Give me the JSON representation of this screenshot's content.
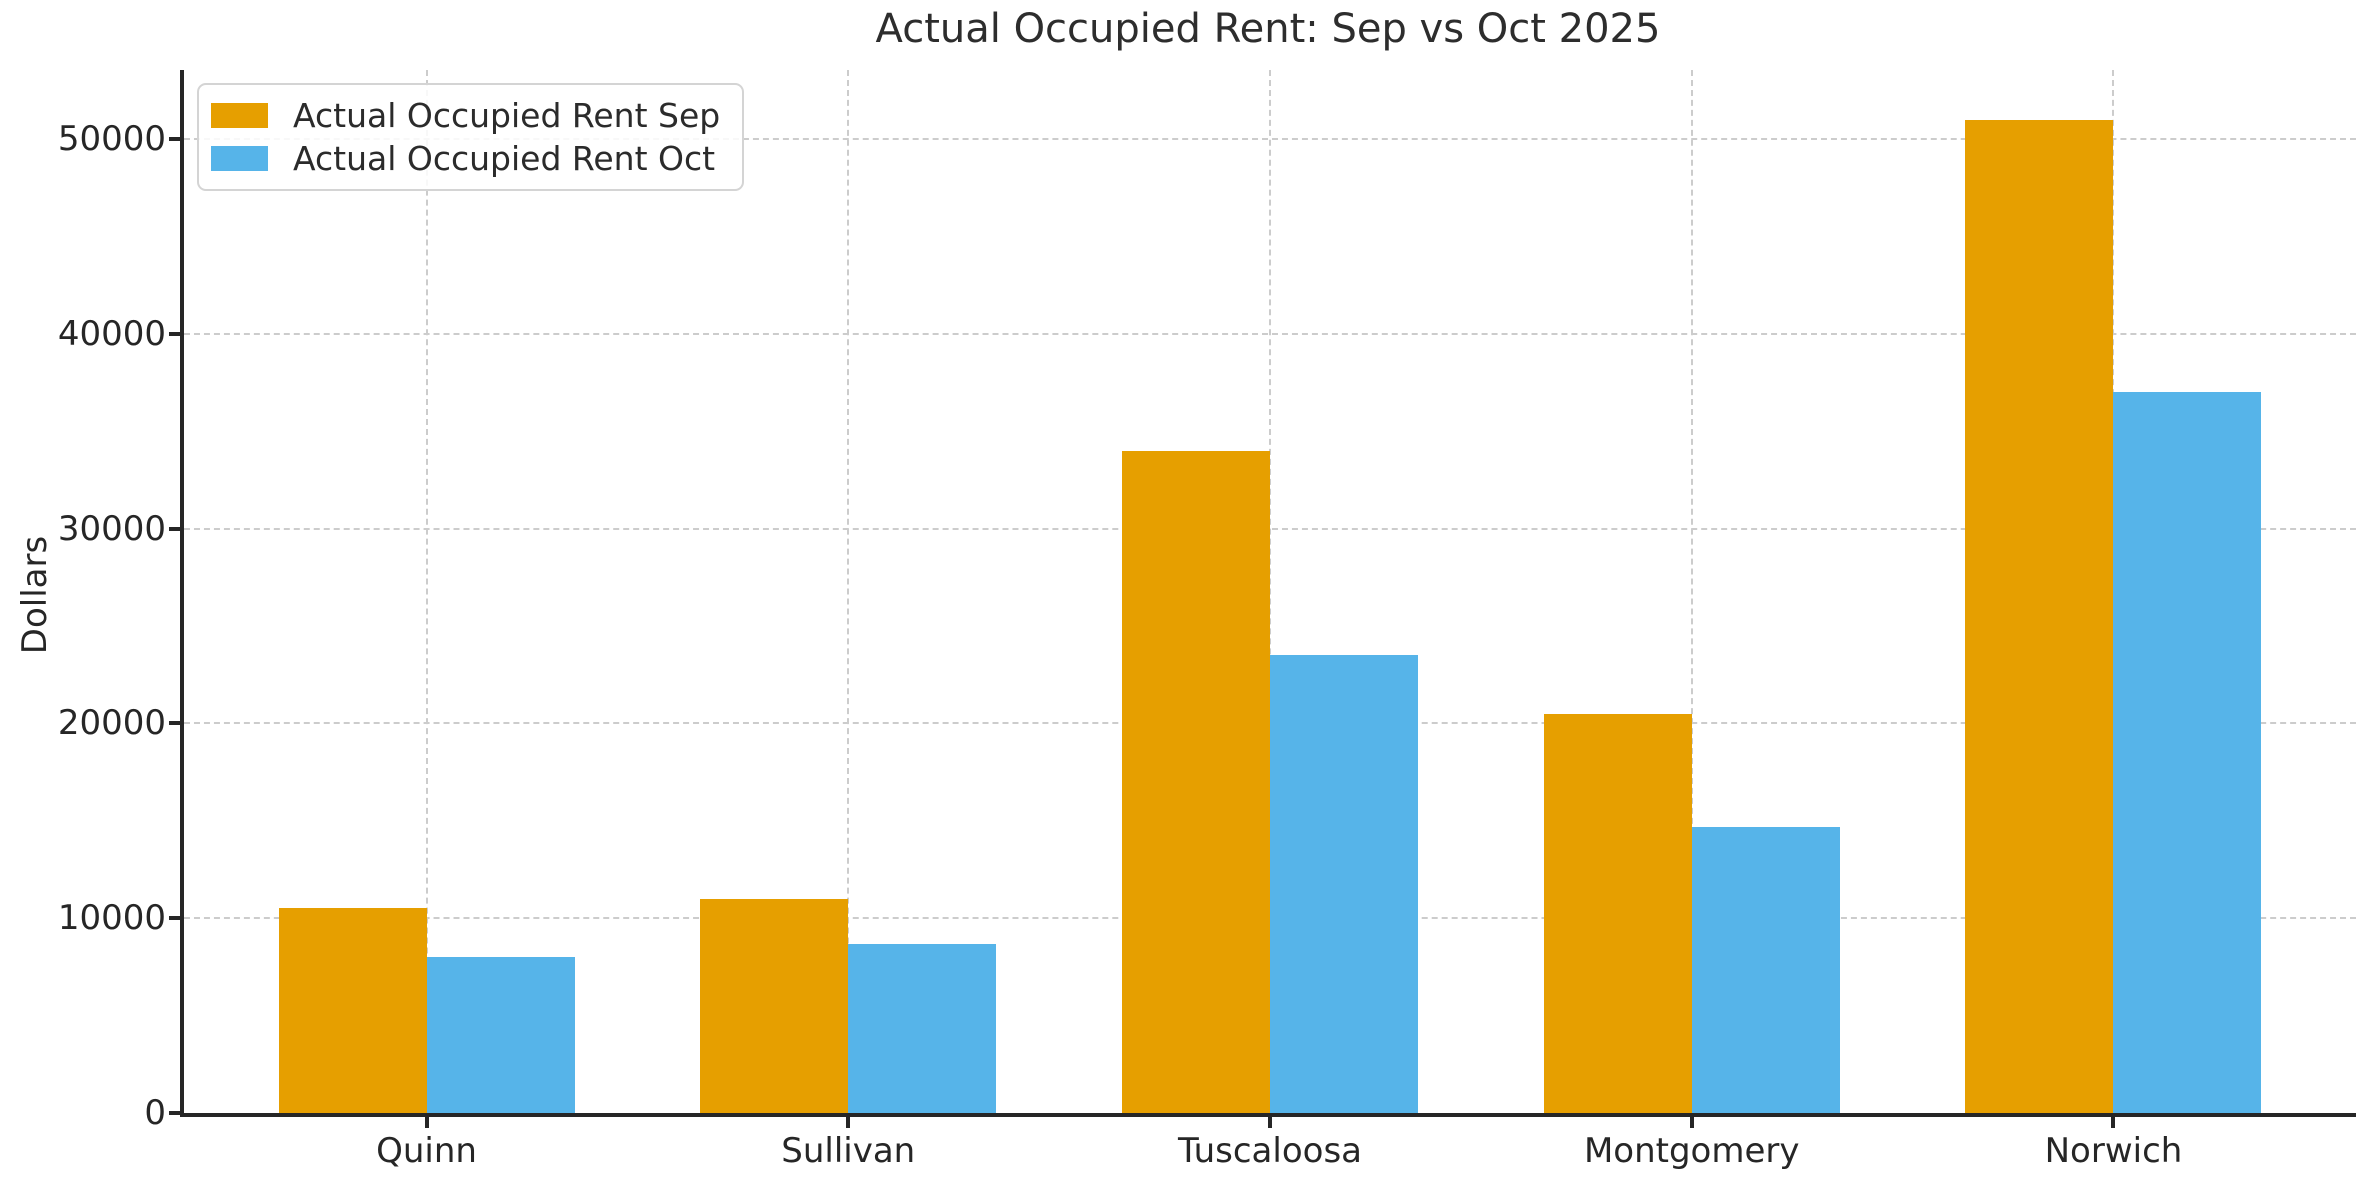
{
  "chart_data": {
    "type": "bar",
    "title": "Actual Occupied Rent: Sep vs Oct 2025",
    "xlabel": "",
    "ylabel": "Dollars",
    "categories": [
      "Quinn",
      "Sullivan",
      "Tuscaloosa",
      "Montgomery",
      "Norwich"
    ],
    "series": [
      {
        "name": "Actual Occupied Rent Sep",
        "color": "#E69F00",
        "values": [
          10500,
          11000,
          34000,
          20500,
          51000
        ]
      },
      {
        "name": "Actual Occupied Rent Oct",
        "color": "#56B4E9",
        "values": [
          8000,
          8700,
          23500,
          14700,
          37000
        ]
      }
    ],
    "yticks": [
      0,
      10000,
      20000,
      30000,
      40000,
      50000
    ],
    "ytick_labels": [
      "0",
      "10000",
      "20000",
      "30000",
      "40000",
      "50000"
    ],
    "ylim": [
      0,
      53550
    ],
    "grid": true,
    "grid_style": "dashed",
    "legend_position": "upper left",
    "style": {
      "grid_color": "#cccccc",
      "spine_color": "#262626",
      "text_color": "#262626",
      "title_color": "#2d2d2d",
      "legend_border_color": "#d4d4d4",
      "background": "#ffffff"
    }
  }
}
